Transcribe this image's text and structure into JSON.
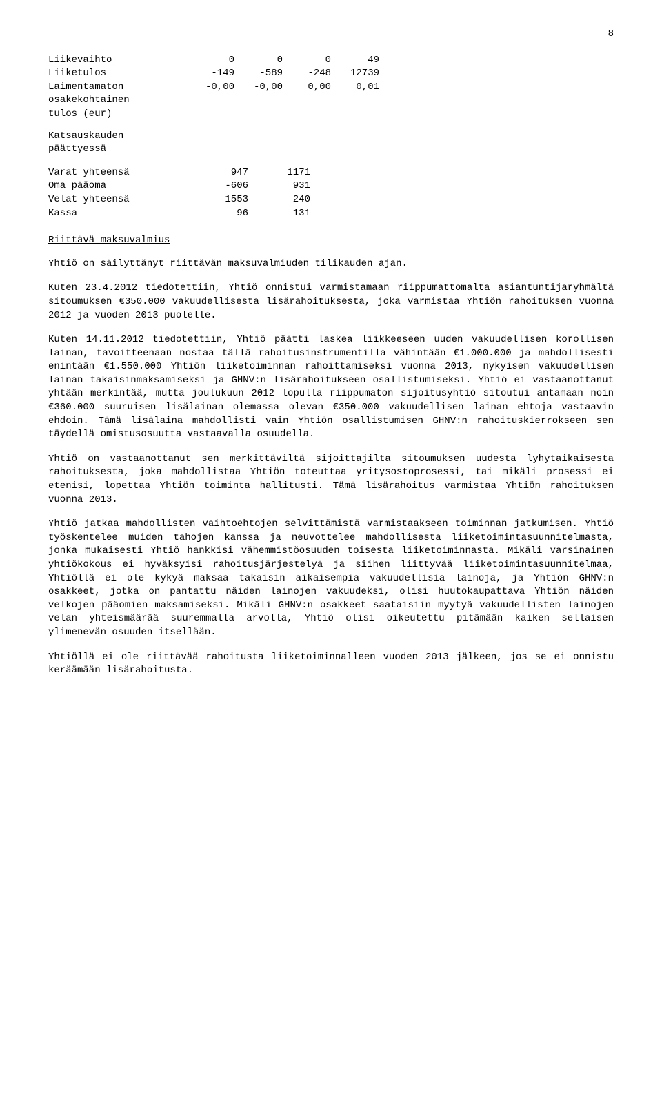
{
  "page_number": "8",
  "table1": {
    "rows": [
      {
        "label": "Liikevaihto",
        "c1": "0",
        "c2": "0",
        "c3": "0",
        "c4": "49"
      },
      {
        "label": "Liiketulos",
        "c1": "-149",
        "c2": "-589",
        "c3": "-248",
        "c4": "12739"
      },
      {
        "label": "Laimentamaton",
        "c1": "-0,00",
        "c2": "-0,00",
        "c3": "0,00",
        "c4": "0,01"
      },
      {
        "label": "osakekohtainen",
        "c1": "",
        "c2": "",
        "c3": "",
        "c4": ""
      },
      {
        "label": "tulos (eur)",
        "c1": "",
        "c2": "",
        "c3": "",
        "c4": ""
      }
    ]
  },
  "katsaus_heading": "Katsauskauden\npäättyessä",
  "table2": {
    "rows": [
      {
        "label": "Varat yhteensä",
        "c1": "947",
        "c2": "1171"
      },
      {
        "label": "Oma pääoma",
        "c1": "-606",
        "c2": "931"
      },
      {
        "label": "Velat yhteensä",
        "c1": "1553",
        "c2": "240"
      },
      {
        "label": "Kassa",
        "c1": "96",
        "c2": "131"
      }
    ]
  },
  "section_heading": "Riittävä maksuvalmius",
  "intro_line": "Yhtiö on säilyttänyt riittävän maksuvalmiuden tilikauden ajan.",
  "p1": "Kuten 23.4.2012 tiedotettiin, Yhtiö onnistui varmistamaan riippumattomalta asiantuntijaryhmältä sitoumuksen €350.000 vakuudellisesta lisärahoituksesta, joka varmistaa Yhtiön rahoituksen vuonna 2012 ja vuoden 2013 puolelle.",
  "p2": "Kuten 14.11.2012 tiedotettiin, Yhtiö päätti laskea liikkeeseen uuden vakuudellisen korollisen lainan, tavoitteenaan nostaa tällä rahoitusinstrumentilla vähintään €1.000.000 ja mahdollisesti enintään €1.550.000 Yhtiön liiketoiminnan rahoittamiseksi vuonna 2013, nykyisen vakuudellisen lainan takaisinmaksamiseksi ja GHNV:n lisärahoitukseen osallistumiseksi. Yhtiö ei vastaanottanut yhtään merkintää, mutta joulukuun 2012 lopulla riippumaton sijoitusyhtiö sitoutui antamaan noin €360.000 suuruisen lisälainan olemassa olevan €350.000 vakuudellisen lainan ehtoja vastaavin ehdoin. Tämä lisälaina mahdollisti vain Yhtiön osallistumisen GHNV:n rahoituskierrokseen sen täydellä omistusosuutta vastaavalla osuudella.",
  "p3": "Yhtiö on vastaanottanut sen merkittäviltä sijoittajilta sitoumuksen uudesta lyhytaikaisesta rahoituksesta, joka mahdollistaa Yhtiön toteuttaa yritysostoprosessi, tai mikäli prosessi ei etenisi, lopettaa Yhtiön toiminta hallitusti. Tämä lisärahoitus varmistaa Yhtiön rahoituksen vuonna 2013.",
  "p4": "Yhtiö jatkaa mahdollisten vaihtoehtojen selvittämistä varmistaakseen toiminnan jatkumisen. Yhtiö työskentelee muiden tahojen kanssa ja neuvottelee mahdollisesta liiketoimintasuunnitelmasta, jonka mukaisesti Yhtiö hankkisi vähemmistöosuuden toisesta liiketoiminnasta. Mikäli varsinainen yhtiökokous ei hyväksyisi rahoitusjärjestelyä ja siihen liittyvää liiketoimintasuunnitelmaa, Yhtiöllä ei ole kykyä maksaa takaisin aikaisempia vakuudellisia lainoja, ja Yhtiön GHNV:n osakkeet, jotka on pantattu näiden lainojen vakuudeksi, olisi huutokaupattava Yhtiön näiden velkojen pääomien maksamiseksi. Mikäli GHNV:n osakkeet saataisiin myytyä vakuudellisten lainojen velan yhteismäärää suuremmalla arvolla, Yhtiö olisi oikeutettu pitämään kaiken sellaisen ylimenevän osuuden itsellään.",
  "p5": "Yhtiöllä ei ole riittävää rahoitusta liiketoiminnalleen vuoden 2013 jälkeen, jos se ei onnistu keräämään lisärahoitusta."
}
